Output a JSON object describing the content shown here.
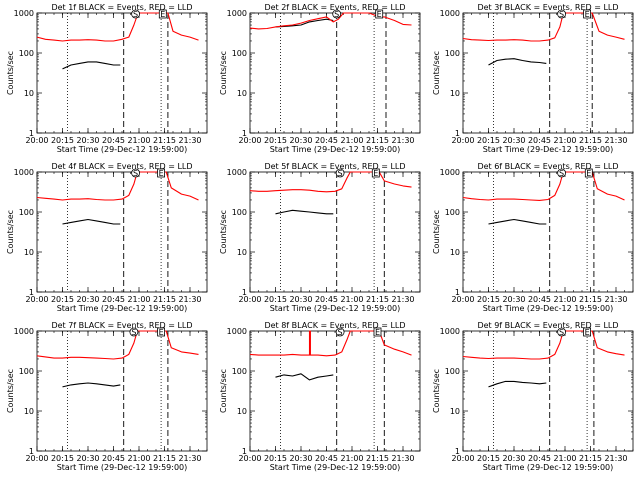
{
  "figure": {
    "ylabel": "Counts/sec",
    "xlabel": "Start Time (29-Dec-12 19:59:00)",
    "x_ticks": [
      "20:00",
      "20:15",
      "20:30",
      "20:45",
      "21:00",
      "21:15",
      "21:30"
    ],
    "y_ticks": [
      "1",
      "10",
      "100",
      "1000"
    ],
    "marker_S": "S",
    "marker_E": "E",
    "colors": {
      "events": "#000000",
      "lld": "#ff0000",
      "axes": "#000000"
    }
  },
  "chart_data": [
    {
      "type": "line",
      "title": "Det 1f BLACK = Events, RED = LLD",
      "xlabel": "Start Time (29-Dec-12 19:59:00)",
      "ylabel": "Counts/sec",
      "scale": "log",
      "ylim": [
        1,
        1000
      ],
      "xlim_min": [
        0,
        100
      ],
      "x_tick_min": [
        0,
        15,
        30,
        45,
        60,
        75,
        90
      ],
      "series": [
        {
          "name": "Events",
          "color": "#000000",
          "x": [
            15,
            20,
            25,
            30,
            35,
            40,
            45,
            49
          ],
          "y": [
            40,
            50,
            55,
            60,
            60,
            55,
            50,
            50
          ]
        },
        {
          "name": "LLD",
          "color": "#ff0000",
          "x": [
            0,
            5,
            10,
            15,
            20,
            25,
            30,
            35,
            40,
            45,
            50,
            54,
            57,
            59.5,
            77,
            80,
            85,
            90,
            95
          ],
          "y": [
            250,
            220,
            210,
            200,
            210,
            210,
            215,
            210,
            200,
            200,
            220,
            250,
            500,
            1000,
            1000,
            350,
            280,
            250,
            210
          ]
        }
      ],
      "vlines_dotted": [
        18,
        73
      ],
      "vlines_dashed": [
        51,
        77
      ],
      "markers": [
        {
          "label": "S",
          "x": 58,
          "y": 1000
        },
        {
          "label": "E",
          "x": 74,
          "y": 1000
        }
      ]
    },
    {
      "type": "line",
      "title": "Det 2f BLACK = Events, RED = LLD",
      "xlabel": "Start Time (29-Dec-12 19:59:00)",
      "ylabel": "Counts/sec",
      "scale": "log",
      "ylim": [
        1,
        1000
      ],
      "xlim_min": [
        0,
        100
      ],
      "x_tick_min": [
        0,
        15,
        30,
        45,
        60,
        75,
        90
      ],
      "series": [
        {
          "name": "Events",
          "color": "#000000",
          "x": [
            15,
            20,
            25,
            30,
            35,
            40,
            45,
            49
          ],
          "y": [
            450,
            460,
            480,
            500,
            600,
            650,
            700,
            650
          ]
        },
        {
          "name": "LLD",
          "color": "#ff0000",
          "x": [
            0,
            5,
            10,
            15,
            20,
            25,
            30,
            35,
            40,
            45,
            49,
            52,
            55,
            57,
            70,
            76,
            79,
            85,
            90,
            95
          ],
          "y": [
            420,
            400,
            410,
            450,
            480,
            500,
            560,
            650,
            720,
            800,
            600,
            700,
            1000,
            1000,
            1000,
            800,
            800,
            650,
            520,
            500
          ]
        }
      ],
      "vlines_dotted": [
        18,
        73
      ],
      "vlines_dashed": [
        51,
        80
      ],
      "markers": [
        {
          "label": "S",
          "x": 51,
          "y": 1000
        },
        {
          "label": "E",
          "x": 76,
          "y": 1000
        }
      ]
    },
    {
      "type": "line",
      "title": "Det 3f BLACK = Events, RED = LLD",
      "xlabel": "Start Time (29-Dec-12 19:59:00)",
      "ylabel": "Counts/sec",
      "scale": "log",
      "ylim": [
        1,
        1000
      ],
      "xlim_min": [
        0,
        100
      ],
      "x_tick_min": [
        0,
        15,
        30,
        45,
        60,
        75,
        90
      ],
      "series": [
        {
          "name": "Events",
          "color": "#000000",
          "x": [
            15,
            20,
            25,
            30,
            35,
            40,
            45,
            49
          ],
          "y": [
            50,
            65,
            70,
            72,
            65,
            60,
            58,
            55
          ]
        },
        {
          "name": "LLD",
          "color": "#ff0000",
          "x": [
            0,
            5,
            10,
            15,
            20,
            25,
            30,
            35,
            40,
            45,
            50,
            54,
            57,
            59,
            76,
            80,
            85,
            90,
            95
          ],
          "y": [
            230,
            215,
            210,
            205,
            210,
            210,
            215,
            210,
            200,
            200,
            210,
            240,
            450,
            1000,
            1000,
            350,
            280,
            250,
            220
          ]
        }
      ],
      "vlines_dotted": [
        18,
        73
      ],
      "vlines_dashed": [
        51,
        76
      ],
      "markers": [
        {
          "label": "S",
          "x": 58,
          "y": 1000
        },
        {
          "label": "E",
          "x": 73,
          "y": 1000
        }
      ]
    },
    {
      "type": "line",
      "title": "Det 4f BLACK = Events, RED = LLD",
      "xlabel": "Start Time (29-Dec-12 19:59:00)",
      "ylabel": "Counts/sec",
      "scale": "log",
      "ylim": [
        1,
        1000
      ],
      "xlim_min": [
        0,
        100
      ],
      "x_tick_min": [
        0,
        15,
        30,
        45,
        60,
        75,
        90
      ],
      "series": [
        {
          "name": "Events",
          "color": "#000000",
          "x": [
            15,
            20,
            25,
            30,
            35,
            40,
            45,
            49
          ],
          "y": [
            50,
            55,
            60,
            65,
            60,
            55,
            50,
            50
          ]
        },
        {
          "name": "LLD",
          "color": "#ff0000",
          "x": [
            0,
            5,
            10,
            15,
            20,
            25,
            30,
            35,
            40,
            45,
            50,
            54,
            57,
            59,
            76,
            79,
            85,
            90,
            95
          ],
          "y": [
            230,
            220,
            210,
            200,
            210,
            210,
            215,
            205,
            200,
            200,
            210,
            260,
            500,
            1000,
            1000,
            400,
            280,
            250,
            200
          ]
        }
      ],
      "vlines_dotted": [
        18,
        73
      ],
      "vlines_dashed": [
        51,
        77
      ],
      "markers": [
        {
          "label": "S",
          "x": 58,
          "y": 1000
        },
        {
          "label": "E",
          "x": 73,
          "y": 1000
        }
      ]
    },
    {
      "type": "line",
      "title": "Det 5f BLACK = Events, RED = LLD",
      "xlabel": "Start Time (29-Dec-12 19:59:00)",
      "ylabel": "Counts/sec",
      "scale": "log",
      "ylim": [
        1,
        1000
      ],
      "xlim_min": [
        0,
        100
      ],
      "x_tick_min": [
        0,
        15,
        30,
        45,
        60,
        75,
        90
      ],
      "series": [
        {
          "name": "Events",
          "color": "#000000",
          "x": [
            15,
            20,
            25,
            30,
            35,
            40,
            45,
            49
          ],
          "y": [
            90,
            100,
            110,
            105,
            100,
            95,
            90,
            90
          ]
        },
        {
          "name": "LLD",
          "color": "#ff0000",
          "x": [
            0,
            5,
            10,
            15,
            20,
            25,
            30,
            35,
            40,
            45,
            50,
            54,
            57,
            59,
            76,
            79,
            85,
            90,
            95
          ],
          "y": [
            340,
            330,
            330,
            340,
            350,
            360,
            360,
            350,
            330,
            320,
            330,
            380,
            700,
            1000,
            1000,
            600,
            500,
            450,
            420
          ]
        }
      ],
      "vlines_dotted": [
        18,
        73
      ],
      "vlines_dashed": [
        51,
        79
      ],
      "markers": [
        {
          "label": "S",
          "x": 53,
          "y": 1000
        },
        {
          "label": "E",
          "x": 74,
          "y": 1000
        }
      ]
    },
    {
      "type": "line",
      "title": "Det 6f BLACK = Events, RED = LLD",
      "xlabel": "Start Time (29-Dec-12 19:59:00)",
      "ylabel": "Counts/sec",
      "scale": "log",
      "ylim": [
        1,
        1000
      ],
      "xlim_min": [
        0,
        100
      ],
      "x_tick_min": [
        0,
        15,
        30,
        45,
        60,
        75,
        90
      ],
      "series": [
        {
          "name": "Events",
          "color": "#000000",
          "x": [
            15,
            20,
            25,
            30,
            35,
            40,
            45,
            49
          ],
          "y": [
            50,
            55,
            60,
            65,
            60,
            55,
            50,
            50
          ]
        },
        {
          "name": "LLD",
          "color": "#ff0000",
          "x": [
            0,
            5,
            10,
            15,
            20,
            25,
            30,
            35,
            40,
            45,
            50,
            54,
            57,
            59,
            76,
            79,
            85,
            90,
            95
          ],
          "y": [
            230,
            215,
            205,
            200,
            210,
            210,
            210,
            205,
            200,
            195,
            205,
            260,
            500,
            1000,
            1000,
            380,
            280,
            250,
            200
          ]
        }
      ],
      "vlines_dotted": [
        18,
        73
      ],
      "vlines_dashed": [
        51,
        77
      ],
      "markers": [
        {
          "label": "S",
          "x": 58,
          "y": 1000
        },
        {
          "label": "E",
          "x": 74,
          "y": 1000
        }
      ]
    },
    {
      "type": "line",
      "title": "Det 7f BLACK = Events, RED = LLD",
      "xlabel": "Start Time (29-Dec-12 19:59:00)",
      "ylabel": "Counts/sec",
      "scale": "log",
      "ylim": [
        1,
        1000
      ],
      "xlim_min": [
        0,
        100
      ],
      "x_tick_min": [
        0,
        15,
        30,
        45,
        60,
        75,
        90
      ],
      "series": [
        {
          "name": "Events",
          "color": "#000000",
          "x": [
            15,
            20,
            25,
            30,
            35,
            40,
            45,
            49
          ],
          "y": [
            40,
            45,
            48,
            50,
            48,
            45,
            42,
            45
          ]
        },
        {
          "name": "LLD",
          "color": "#ff0000",
          "x": [
            0,
            5,
            10,
            15,
            20,
            25,
            30,
            35,
            40,
            45,
            50,
            54,
            57,
            59,
            76,
            79,
            85,
            90,
            95
          ],
          "y": [
            240,
            225,
            210,
            210,
            220,
            220,
            215,
            210,
            205,
            200,
            210,
            260,
            500,
            1000,
            1000,
            380,
            300,
            280,
            260
          ]
        }
      ],
      "vlines_dotted": [
        18,
        73
      ],
      "vlines_dashed": [
        51,
        77
      ],
      "markers": [
        {
          "label": "S",
          "x": 57,
          "y": 1000
        },
        {
          "label": "E",
          "x": 73,
          "y": 1000
        }
      ]
    },
    {
      "type": "line",
      "title": "Det 8f BLACK = Events, RED = LLD",
      "xlabel": "Start Time (29-Dec-12 19:59:00)",
      "ylabel": "Counts/sec",
      "scale": "log",
      "ylim": [
        1,
        1000
      ],
      "xlim_min": [
        0,
        100
      ],
      "x_tick_min": [
        0,
        15,
        30,
        45,
        60,
        75,
        90
      ],
      "series": [
        {
          "name": "Events",
          "color": "#000000",
          "x": [
            15,
            20,
            25,
            30,
            35,
            40,
            45,
            49
          ],
          "y": [
            70,
            80,
            75,
            85,
            60,
            70,
            75,
            80
          ]
        },
        {
          "name": "LLD",
          "color": "#ff0000",
          "x": [
            0,
            5,
            10,
            15,
            20,
            25,
            30,
            35,
            40,
            45,
            50,
            54,
            57,
            59,
            76,
            79,
            85,
            90,
            95
          ],
          "y": [
            260,
            250,
            250,
            250,
            250,
            260,
            250,
            250,
            250,
            240,
            250,
            300,
            600,
            1000,
            1000,
            450,
            350,
            300,
            250
          ]
        },
        {
          "name": "LLD spike",
          "color": "#ff0000",
          "x": [
            35,
            35,
            35.5,
            35.5
          ],
          "y": [
            250,
            1000,
            1000,
            250
          ]
        }
      ],
      "vlines_dotted": [
        18,
        73
      ],
      "vlines_dashed": [
        51,
        79
      ],
      "markers": [
        {
          "label": "S",
          "x": 53,
          "y": 1000
        },
        {
          "label": "E",
          "x": 75,
          "y": 1000
        }
      ]
    },
    {
      "type": "line",
      "title": "Det 9f BLACK = Events, RED = LLD",
      "xlabel": "Start Time (29-Dec-12 19:59:00)",
      "ylabel": "Counts/sec",
      "scale": "log",
      "ylim": [
        1,
        1000
      ],
      "xlim_min": [
        0,
        100
      ],
      "x_tick_min": [
        0,
        15,
        30,
        45,
        60,
        75,
        90
      ],
      "series": [
        {
          "name": "Events",
          "color": "#000000",
          "x": [
            15,
            20,
            25,
            30,
            35,
            40,
            45,
            49
          ],
          "y": [
            40,
            48,
            55,
            55,
            52,
            50,
            48,
            50
          ]
        },
        {
          "name": "LLD",
          "color": "#ff0000",
          "x": [
            0,
            5,
            10,
            15,
            20,
            25,
            30,
            35,
            40,
            45,
            50,
            54,
            57,
            59,
            76,
            79,
            85,
            90,
            95
          ],
          "y": [
            230,
            220,
            210,
            205,
            210,
            210,
            210,
            205,
            200,
            200,
            210,
            260,
            500,
            1000,
            1000,
            380,
            300,
            270,
            250
          ]
        }
      ],
      "vlines_dotted": [
        18,
        73
      ],
      "vlines_dashed": [
        51,
        77
      ],
      "markers": [
        {
          "label": "S",
          "x": 58,
          "y": 1000
        },
        {
          "label": "E",
          "x": 73,
          "y": 1000
        }
      ]
    }
  ]
}
